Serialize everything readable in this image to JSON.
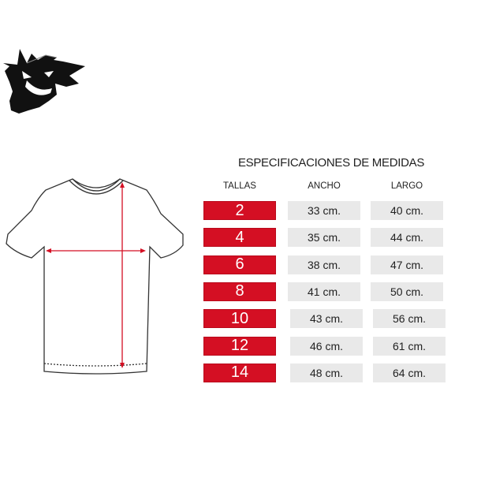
{
  "logo": {
    "icon": "gengar-ghost-silhouette"
  },
  "diagram": {
    "icon": "tshirt-outline",
    "arrow_color": "#d40f23"
  },
  "table": {
    "title": "ESPECIFICACIONES DE MEDIDAS",
    "headers": [
      "TALLAS",
      "ANCHO",
      "LARGO"
    ],
    "colors": {
      "size_bg": "#d40f23",
      "measure_bg": "#e9e9e9"
    },
    "rows": [
      {
        "talla": "2",
        "ancho": "33 cm.",
        "largo": "40 cm."
      },
      {
        "talla": "4",
        "ancho": "35 cm.",
        "largo": "44 cm."
      },
      {
        "talla": "6",
        "ancho": "38 cm.",
        "largo": "47 cm."
      },
      {
        "talla": "8",
        "ancho": "41 cm.",
        "largo": "50 cm."
      },
      {
        "talla": "10",
        "ancho": "43 cm.",
        "largo": "56 cm."
      },
      {
        "talla": "12",
        "ancho": "46 cm.",
        "largo": "61 cm."
      },
      {
        "talla": "14",
        "ancho": "48 cm.",
        "largo": "64 cm."
      }
    ]
  }
}
